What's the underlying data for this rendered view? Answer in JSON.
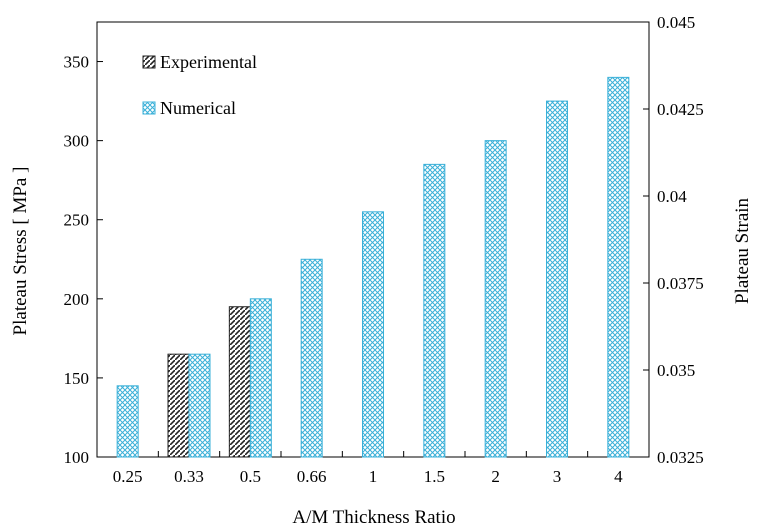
{
  "chart_data": {
    "type": "bar",
    "title": "",
    "xlabel": "A/M Thickness Ratio",
    "ylabel": "Plateau Stress [ MPa ]",
    "y2label": "Plateau Strain",
    "categories": [
      "0.25",
      "0.33",
      "0.5",
      "0.66",
      "1",
      "1.5",
      "2",
      "3",
      "4"
    ],
    "ylim": [
      100,
      375
    ],
    "yticks": [
      100,
      150,
      200,
      250,
      300,
      350
    ],
    "y2lim": [
      0.0325,
      0.045
    ],
    "y2ticks": [
      "0.0325",
      "0.035",
      "0.0375",
      "0.04",
      "0.0425",
      "0.045"
    ],
    "grid": false,
    "legend_position": "top-left",
    "series": [
      {
        "name": "Experimental",
        "values": [
          null,
          165,
          195,
          null,
          null,
          null,
          null,
          null,
          null
        ],
        "color": "#222222",
        "pattern": "diagonal-hatch"
      },
      {
        "name": "Numerical",
        "values": [
          145,
          165,
          200,
          225,
          255,
          285,
          300,
          325,
          340
        ],
        "color": "#3ab0d8",
        "pattern": "crosshatch"
      }
    ]
  }
}
